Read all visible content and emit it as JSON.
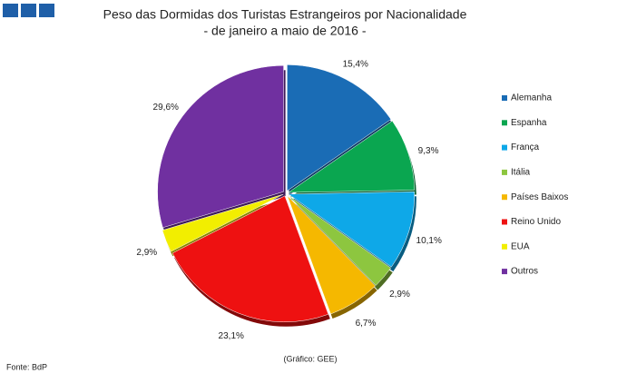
{
  "chart_data": {
    "type": "pie",
    "title": "Peso das Dormidas dos Turistas Estrangeiros por Nacionalidade",
    "subtitle": "- de janeiro a maio de 2016 -",
    "categories": [
      "Alemanha",
      "Espanha",
      "França",
      "Itália",
      "Países Baixos",
      "Reino Unido",
      "EUA",
      "Outros"
    ],
    "values": [
      15.4,
      9.3,
      10.1,
      2.9,
      6.7,
      23.1,
      2.9,
      29.6
    ],
    "value_labels": [
      "15,4%",
      "9,3%",
      "10,1%",
      "2,9%",
      "6,7%",
      "23,1%",
      "2,9%",
      "29,6%"
    ],
    "colors": [
      "#1a6cb5",
      "#0aa650",
      "#0ea8e8",
      "#8dc63f",
      "#f5b800",
      "#ee1111",
      "#f2ee00",
      "#7030a0"
    ],
    "legend": "right"
  },
  "source": "Fonte: BdP",
  "credit": "(Gráfico: GEE)"
}
